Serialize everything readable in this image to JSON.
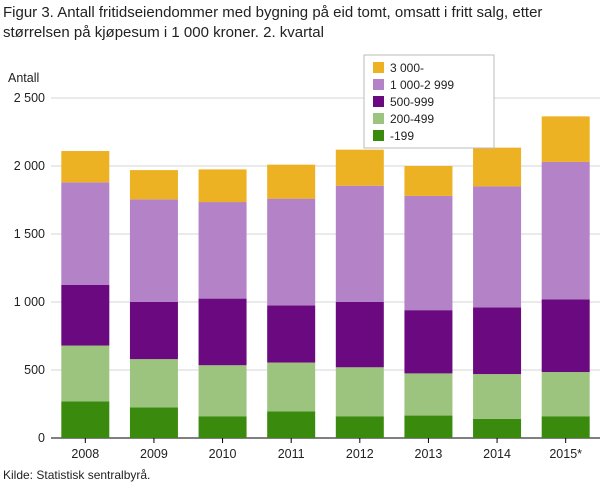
{
  "title": "Figur 3. Antall fritidseiendommer med bygning på eid tomt, omsatt i fritt salg, etter størrelsen på kjøpesum i 1 000 kroner. 2. kvartal",
  "source": "Kilde: Statistisk sentralbyrå.",
  "chart_data": {
    "type": "bar",
    "stacked": true,
    "title": "Figur 3. Antall fritidseiendommer med bygning på eid tomt, omsatt i fritt salg, etter størrelsen på kjøpesum i 1 000 kroner. 2. kvartal",
    "xlabel": "",
    "ylabel": "Antall",
    "ylim": [
      0,
      2500
    ],
    "yticks": [
      0,
      500,
      1000,
      1500,
      2000,
      2500
    ],
    "ytick_labels": [
      "0",
      "500",
      "1 000",
      "1 500",
      "2 000",
      "2 500"
    ],
    "grid": true,
    "legend_position": "top-right",
    "categories": [
      "2008",
      "2009",
      "2010",
      "2011",
      "2012",
      "2013",
      "2014",
      "2015*"
    ],
    "series": [
      {
        "name": "-199",
        "color": "#3a8a0d",
        "values": [
          270,
          225,
          160,
          195,
          160,
          165,
          140,
          160
        ]
      },
      {
        "name": "200-499",
        "color": "#9cc47f",
        "values": [
          410,
          355,
          375,
          360,
          360,
          310,
          330,
          325
        ]
      },
      {
        "name": "500-999",
        "color": "#6b0a80",
        "values": [
          445,
          420,
          490,
          420,
          480,
          465,
          490,
          535
        ]
      },
      {
        "name": "1 000-2 999",
        "color": "#b382c7",
        "values": [
          755,
          755,
          710,
          785,
          855,
          840,
          890,
          1010
        ]
      },
      {
        "name": "3 000-",
        "color": "#ecb223",
        "values": [
          230,
          215,
          240,
          250,
          265,
          220,
          285,
          335
        ]
      }
    ]
  }
}
